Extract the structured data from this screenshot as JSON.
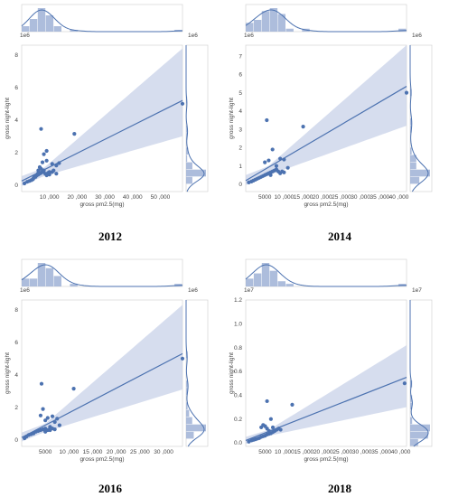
{
  "chart_data": [
    {
      "type": "scatter",
      "caption": "2012",
      "xlabel": "gross pm2.5(mg)",
      "ylabel": "gross night-light",
      "x_ticks": [
        "10 ,000",
        "20 ,000",
        "30 ,000",
        "40 ,000",
        "50 ,000"
      ],
      "x_tick_values": [
        10000,
        20000,
        30000,
        40000,
        50000
      ],
      "y_ticks": [
        "0",
        "2",
        "4",
        "6",
        "8"
      ],
      "y_tick_values": [
        0,
        2,
        4,
        6,
        8
      ],
      "xlim": [
        0,
        58000
      ],
      "ylim": [
        -0.4,
        8.6
      ],
      "y_multiplier": "1e6",
      "top_multiplier": "1e6",
      "points_x": [
        1000,
        2000,
        2800,
        3500,
        4200,
        4500,
        5000,
        5500,
        6000,
        6500,
        7000,
        7500,
        8000,
        8500,
        9000,
        9500,
        10000,
        11000,
        12500,
        13500,
        6000,
        6500,
        7000,
        7500,
        8000,
        9000,
        10000,
        11000,
        19000,
        4000,
        5000,
        5800,
        7000,
        9000,
        11500,
        12500,
        58000
      ],
      "points_y": [
        0.1,
        0.2,
        0.25,
        0.3,
        0.4,
        0.5,
        0.55,
        0.6,
        0.65,
        0.7,
        0.75,
        0.8,
        0.9,
        0.7,
        0.6,
        0.75,
        0.65,
        0.8,
        1.2,
        1.35,
        0.9,
        1.1,
        1.0,
        1.4,
        1.9,
        2.1,
        0.8,
        1.3,
        3.15,
        0.35,
        0.5,
        0.7,
        3.45,
        1.5,
        0.9,
        0.7,
        5.0
      ],
      "reg_line": {
        "x": [
          0,
          58000
        ],
        "y": [
          0.25,
          5.2
        ]
      },
      "ci_band": {
        "x": [
          0,
          8000,
          58000
        ],
        "upper": [
          0.55,
          1.05,
          8.4
        ],
        "lower": [
          -0.05,
          0.55,
          3.0
        ]
      }
    },
    {
      "type": "scatter",
      "caption": "2014",
      "xlabel": "gross pm2.5(mg)",
      "ylabel": "gross night-light",
      "x_ticks": [
        "5000",
        "10 ,000",
        "15 ,000",
        "20 ,000",
        "25 ,000",
        "30 ,000",
        "35 ,000",
        "40 ,000"
      ],
      "x_tick_values": [
        5000,
        10000,
        15000,
        20000,
        25000,
        30000,
        35000,
        40000
      ],
      "y_ticks": [
        "0",
        "1",
        "2",
        "3",
        "4",
        "5",
        "6",
        "7"
      ],
      "y_tick_values": [
        0,
        1,
        2,
        3,
        4,
        5,
        6,
        7
      ],
      "xlim": [
        0,
        42000
      ],
      "ylim": [
        -0.4,
        7.6
      ],
      "y_multiplier": "1e6",
      "top_multiplier": "1e6",
      "points_x": [
        800,
        1500,
        2000,
        2500,
        3000,
        3500,
        4000,
        4500,
        5000,
        5500,
        6000,
        6500,
        7000,
        7500,
        8000,
        8500,
        9000,
        9500,
        10000,
        5000,
        6000,
        7000,
        8000,
        9000,
        10000,
        11000,
        15000,
        5500,
        6500,
        8000,
        42000
      ],
      "points_y": [
        0.1,
        0.15,
        0.2,
        0.25,
        0.3,
        0.35,
        0.4,
        0.45,
        0.5,
        0.55,
        0.6,
        0.65,
        0.7,
        0.75,
        0.8,
        0.7,
        0.6,
        0.7,
        0.65,
        1.2,
        1.3,
        1.9,
        1.0,
        1.4,
        1.35,
        0.9,
        3.15,
        3.5,
        0.5,
        0.8,
        5.0
      ],
      "reg_line": {
        "x": [
          0,
          42000
        ],
        "y": [
          0.2,
          5.35
        ]
      },
      "ci_band": {
        "x": [
          0,
          6000,
          42000
        ],
        "upper": [
          0.5,
          1.0,
          7.6
        ],
        "lower": [
          -0.05,
          0.5,
          3.2
        ]
      }
    },
    {
      "type": "scatter",
      "caption": "2016",
      "xlabel": "gross pm2.5(mg)",
      "ylabel": "gross night-light",
      "x_ticks": [
        "5000",
        "10 ,000",
        "15 ,000",
        "20 ,000",
        "25 ,000",
        "30 ,000"
      ],
      "x_tick_values": [
        5000,
        10000,
        15000,
        20000,
        25000,
        30000
      ],
      "y_ticks": [
        "0",
        "2",
        "4",
        "6",
        "8"
      ],
      "y_tick_values": [
        0,
        2,
        4,
        6,
        8
      ],
      "xlim": [
        0,
        34000
      ],
      "ylim": [
        -0.4,
        8.6
      ],
      "y_multiplier": "1e6",
      "top_multiplier": "1e6",
      "points_x": [
        600,
        1000,
        1500,
        2000,
        2500,
        3000,
        3500,
        4000,
        4500,
        5000,
        5500,
        6000,
        6500,
        7000,
        7500,
        8000,
        4000,
        4500,
        5000,
        5500,
        6000,
        6500,
        7000,
        11000,
        4200,
        5000,
        6000,
        34000
      ],
      "points_y": [
        0.1,
        0.2,
        0.3,
        0.35,
        0.4,
        0.5,
        0.55,
        0.6,
        0.65,
        0.7,
        0.6,
        0.75,
        0.7,
        1.1,
        1.3,
        0.9,
        1.5,
        1.9,
        1.2,
        1.35,
        0.8,
        1.45,
        0.65,
        3.15,
        3.45,
        0.5,
        0.6,
        5.0
      ],
      "reg_line": {
        "x": [
          0,
          34000
        ],
        "y": [
          0.15,
          5.3
        ]
      },
      "ci_band": {
        "x": [
          0,
          5000,
          34000
        ],
        "upper": [
          0.45,
          1.0,
          8.3
        ],
        "lower": [
          -0.1,
          0.5,
          3.1
        ]
      }
    },
    {
      "type": "scatter",
      "caption": "2018",
      "xlabel": "gross pm2.5(mg)",
      "ylabel": "gross night-light",
      "x_ticks": [
        "5000",
        "10 ,000",
        "15 ,000",
        "20 ,000",
        "25 ,000",
        "30 ,000",
        "35 ,000",
        "40 ,000"
      ],
      "x_tick_values": [
        5000,
        10000,
        15000,
        20000,
        25000,
        30000,
        35000,
        40000
      ],
      "y_ticks": [
        "0.0",
        "0.2",
        "0.4",
        "0.6",
        "0.8",
        "1.0",
        "1.2"
      ],
      "y_tick_values": [
        0,
        0.2,
        0.4,
        0.6,
        0.8,
        1.0,
        1.2
      ],
      "xlim": [
        0,
        41500
      ],
      "ylim": [
        -0.03,
        1.2
      ],
      "y_multiplier": "1e7",
      "top_multiplier": "1e7",
      "points_x": [
        800,
        1500,
        2000,
        2500,
        3000,
        3500,
        4000,
        4500,
        5000,
        5500,
        6000,
        6500,
        7000,
        7500,
        8000,
        8500,
        9000,
        4000,
        4500,
        5000,
        5500,
        6000,
        6500,
        7000,
        12000,
        5500,
        41000
      ],
      "points_y": [
        0.01,
        0.02,
        0.025,
        0.03,
        0.035,
        0.04,
        0.05,
        0.055,
        0.06,
        0.07,
        0.075,
        0.08,
        0.09,
        0.1,
        0.11,
        0.12,
        0.11,
        0.13,
        0.15,
        0.14,
        0.12,
        0.1,
        0.2,
        0.13,
        0.32,
        0.35,
        0.5
      ],
      "reg_line": {
        "x": [
          0,
          41500
        ],
        "y": [
          0.02,
          0.55
        ]
      },
      "ci_band": {
        "x": [
          0,
          6000,
          41500
        ],
        "upper": [
          0.05,
          0.11,
          0.82
        ],
        "lower": [
          -0.01,
          0.06,
          0.3
        ]
      }
    }
  ],
  "colors": {
    "accent": "#4c72b0",
    "band": "#c8d2e8",
    "hist": "#9fb2d6",
    "axis": "#cccccc"
  }
}
